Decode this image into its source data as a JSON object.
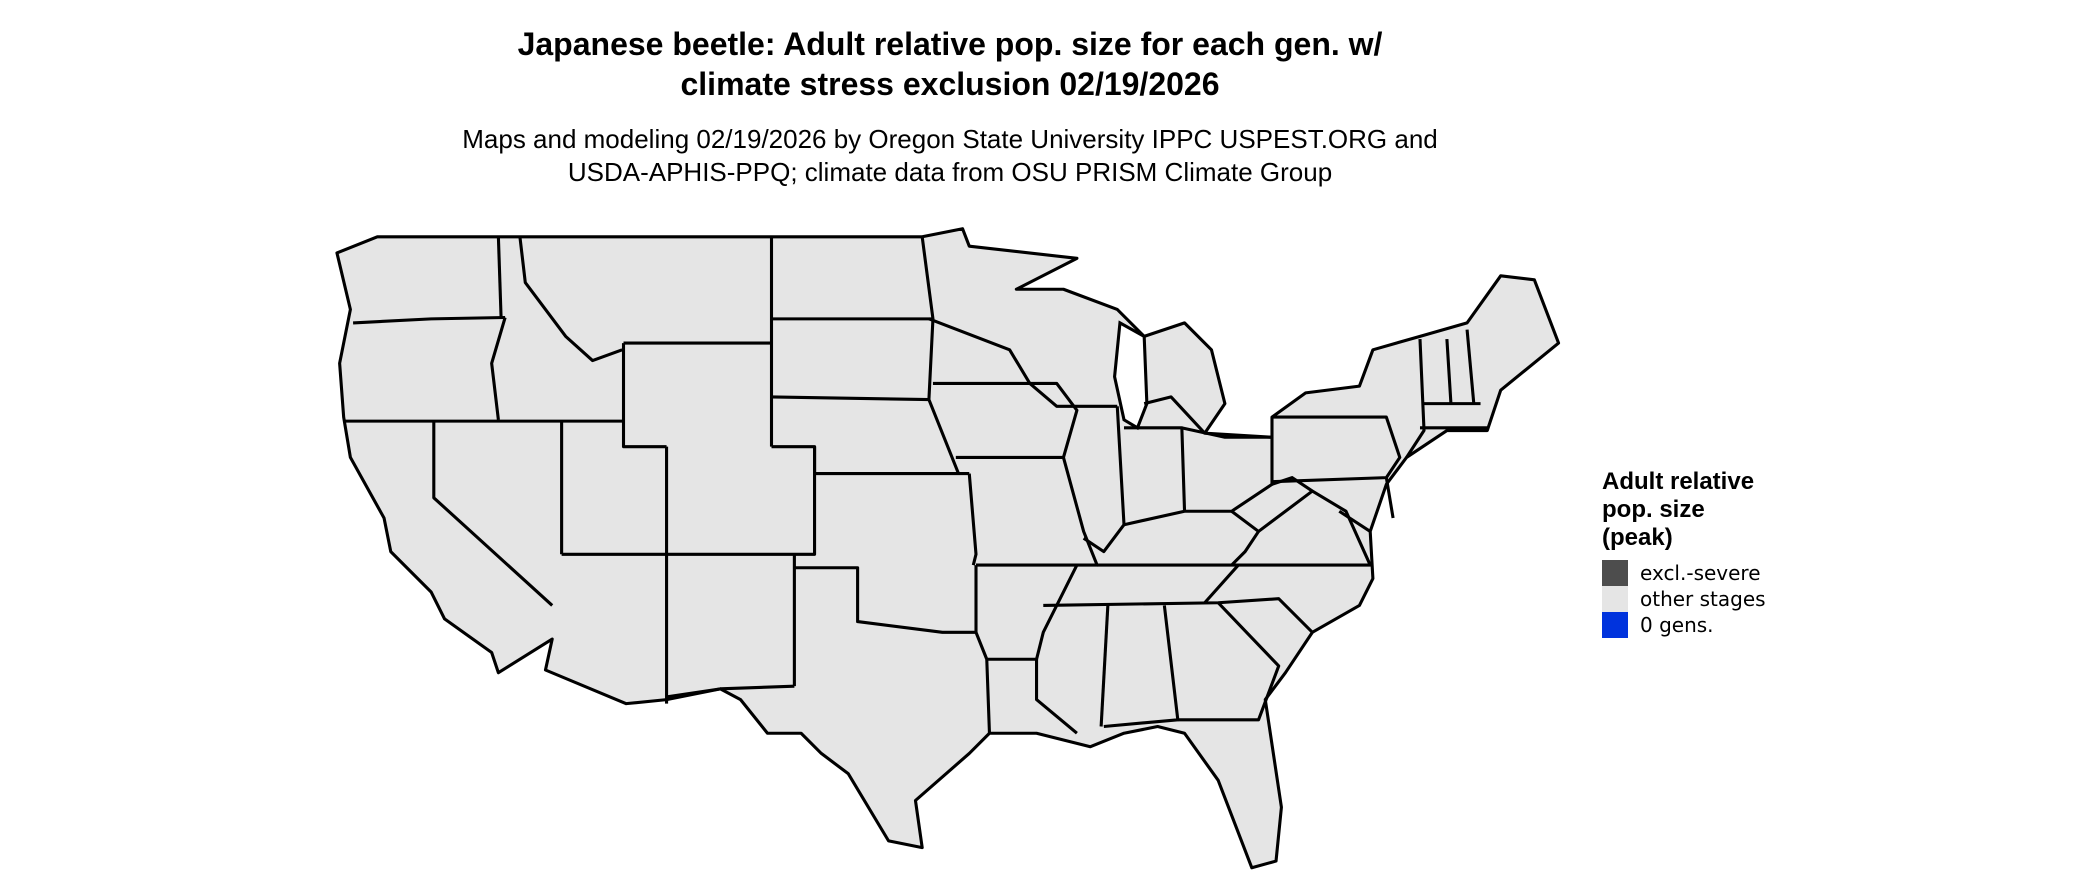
{
  "title": {
    "line1": "Japanese beetle: Adult relative pop. size for each gen. w/",
    "line2": "climate stress exclusion 02/19/2026"
  },
  "subtitle": {
    "line1": "Maps and modeling 02/19/2026 by Oregon State University IPPC USPEST.ORG and",
    "line2": "USDA-APHIS-PPQ; climate data from OSU PRISM Climate Group"
  },
  "legend": {
    "title_line1": "Adult relative",
    "title_line2": "pop. size",
    "title_line3": "(peak)",
    "items": [
      {
        "label": "excl.-severe",
        "color": "#4d4d4d"
      },
      {
        "label": "other stages",
        "color": "#e5e5e5"
      },
      {
        "label": "0 gens.",
        "color": "#0033dd"
      }
    ]
  },
  "chart_data": {
    "type": "map",
    "region": "contiguous United States, state boundaries",
    "fill_category": "other stages",
    "land_color": "#e5e5e5",
    "border_color": "#000000"
  }
}
